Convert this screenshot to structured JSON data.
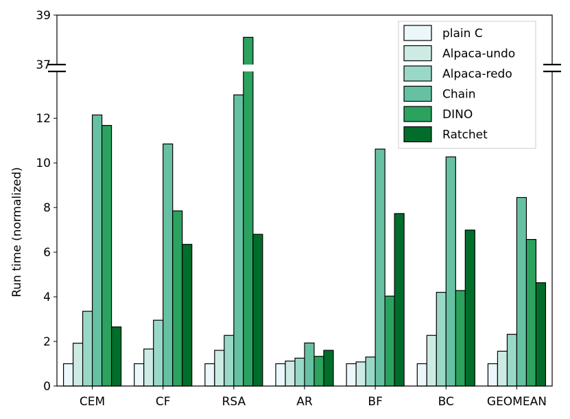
{
  "chart_data": {
    "type": "bar",
    "title": "",
    "xlabel": "",
    "ylabel": "Run time (normalized)",
    "categories": [
      "CEM",
      "CF",
      "RSA",
      "AR",
      "BF",
      "BC",
      "GEOMEAN"
    ],
    "series": [
      {
        "name": "plain C",
        "color": "#ebf7fa",
        "values": [
          1,
          1,
          1,
          1,
          1,
          1,
          1
        ]
      },
      {
        "name": "Alpaca-undo",
        "color": "#cdebe4",
        "values": [
          1.92,
          1.66,
          1.6,
          1.12,
          1.08,
          2.27,
          1.56
        ]
      },
      {
        "name": "Alpaca-redo",
        "color": "#99d8c7",
        "values": [
          3.35,
          2.95,
          2.27,
          1.25,
          1.3,
          4.2,
          2.32
        ]
      },
      {
        "name": "Chain",
        "color": "#66c1a2",
        "values": [
          12.15,
          10.85,
          13.05,
          1.93,
          10.62,
          10.27,
          8.45
        ]
      },
      {
        "name": "DINO",
        "color": "#2ba25e",
        "values": [
          11.68,
          7.85,
          38.1,
          1.33,
          4.03,
          4.28,
          6.57
        ]
      },
      {
        "name": "Ratchet",
        "color": "#016d2b",
        "values": [
          2.65,
          6.35,
          6.8,
          1.6,
          7.73,
          6.99,
          4.63
        ]
      }
    ],
    "lower_axis": {
      "ylim": [
        0,
        14.1
      ],
      "ticks": [
        0,
        2,
        4,
        6,
        8,
        10,
        12
      ]
    },
    "upper_axis": {
      "ylim": [
        37,
        39
      ],
      "ticks": [
        37,
        39
      ]
    },
    "broken_axis": true,
    "legend_position": "top-right",
    "grid": false
  }
}
